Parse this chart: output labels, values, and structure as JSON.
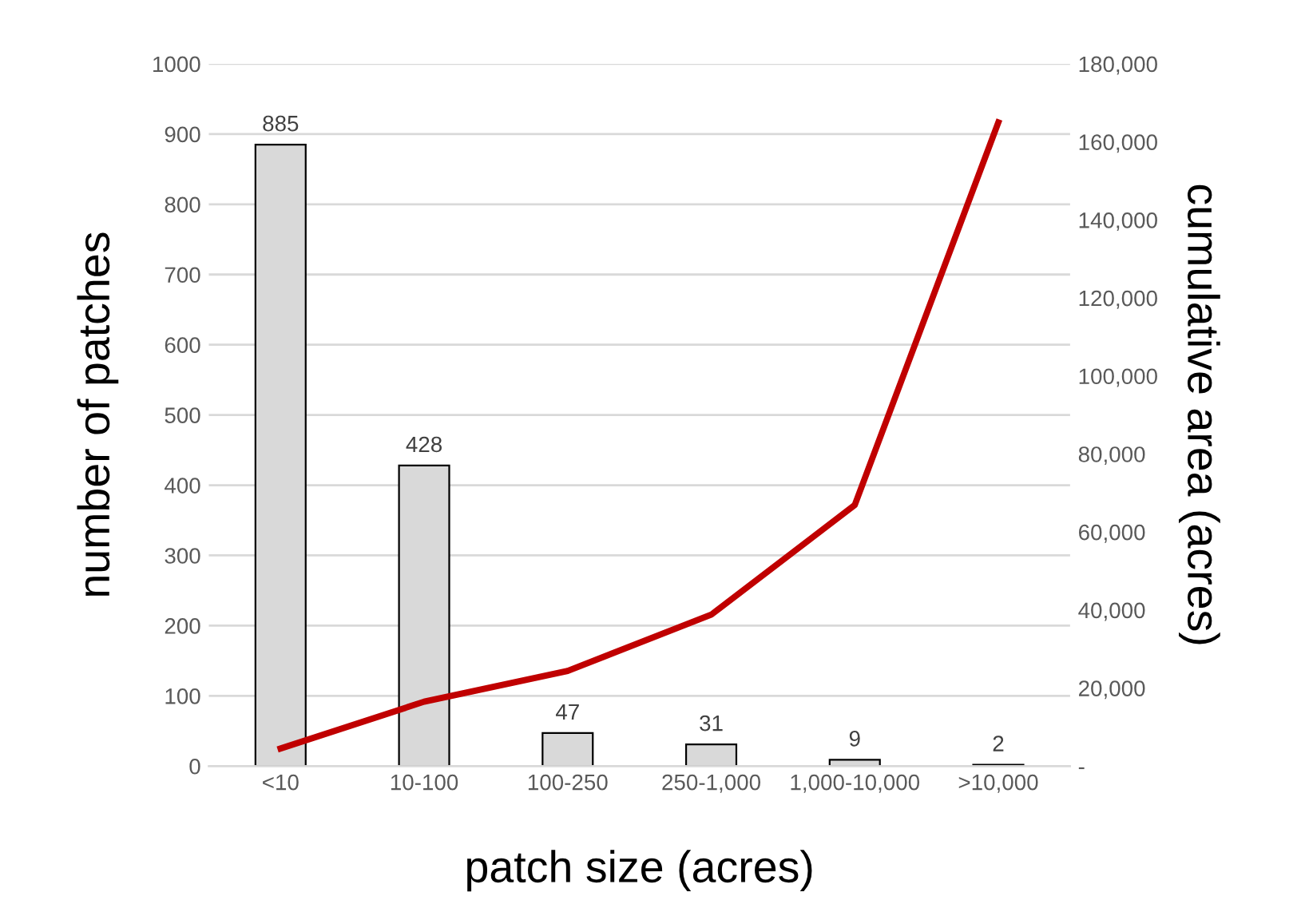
{
  "chart_data": {
    "type": "bar",
    "xlabel": "patch size (acres)",
    "ylabel": "number of patches",
    "y2label": "cumulative area (acres)",
    "categories": [
      "<10",
      "10-100",
      "100-250",
      "250-1,000",
      "1,000-10,000",
      ">10,000"
    ],
    "series": [
      {
        "color": "#d9d9d9",
        "values": [
          885,
          428,
          47,
          31,
          9,
          2
        ],
        "value_labels": [
          "885",
          "428",
          "47",
          "31",
          "9",
          "2"
        ]
      },
      {
        "type": "line",
        "axis": "y2",
        "color": "#c00000",
        "values": [
          4500,
          16500,
          24400,
          38800,
          66900,
          165000
        ]
      }
    ],
    "ylim": [
      0,
      1000
    ],
    "yticks": [
      0,
      100,
      200,
      300,
      400,
      500,
      600,
      700,
      800,
      900,
      1000
    ],
    "y2lim": [
      0,
      180000
    ],
    "y2ticks": [
      {
        "value": 0,
        "label": "-"
      },
      {
        "value": 20000,
        "label": "20,000"
      },
      {
        "value": 40000,
        "label": "40,000"
      },
      {
        "value": 60000,
        "label": "60,000"
      },
      {
        "value": 80000,
        "label": "80,000"
      },
      {
        "value": 100000,
        "label": "100,000"
      },
      {
        "value": 120000,
        "label": "120,000"
      },
      {
        "value": 140000,
        "label": "140,000"
      },
      {
        "value": 160000,
        "label": "160,000"
      },
      {
        "value": 180000,
        "label": "180,000"
      }
    ],
    "grid": "y",
    "marker": "none",
    "line_style": "solid"
  }
}
